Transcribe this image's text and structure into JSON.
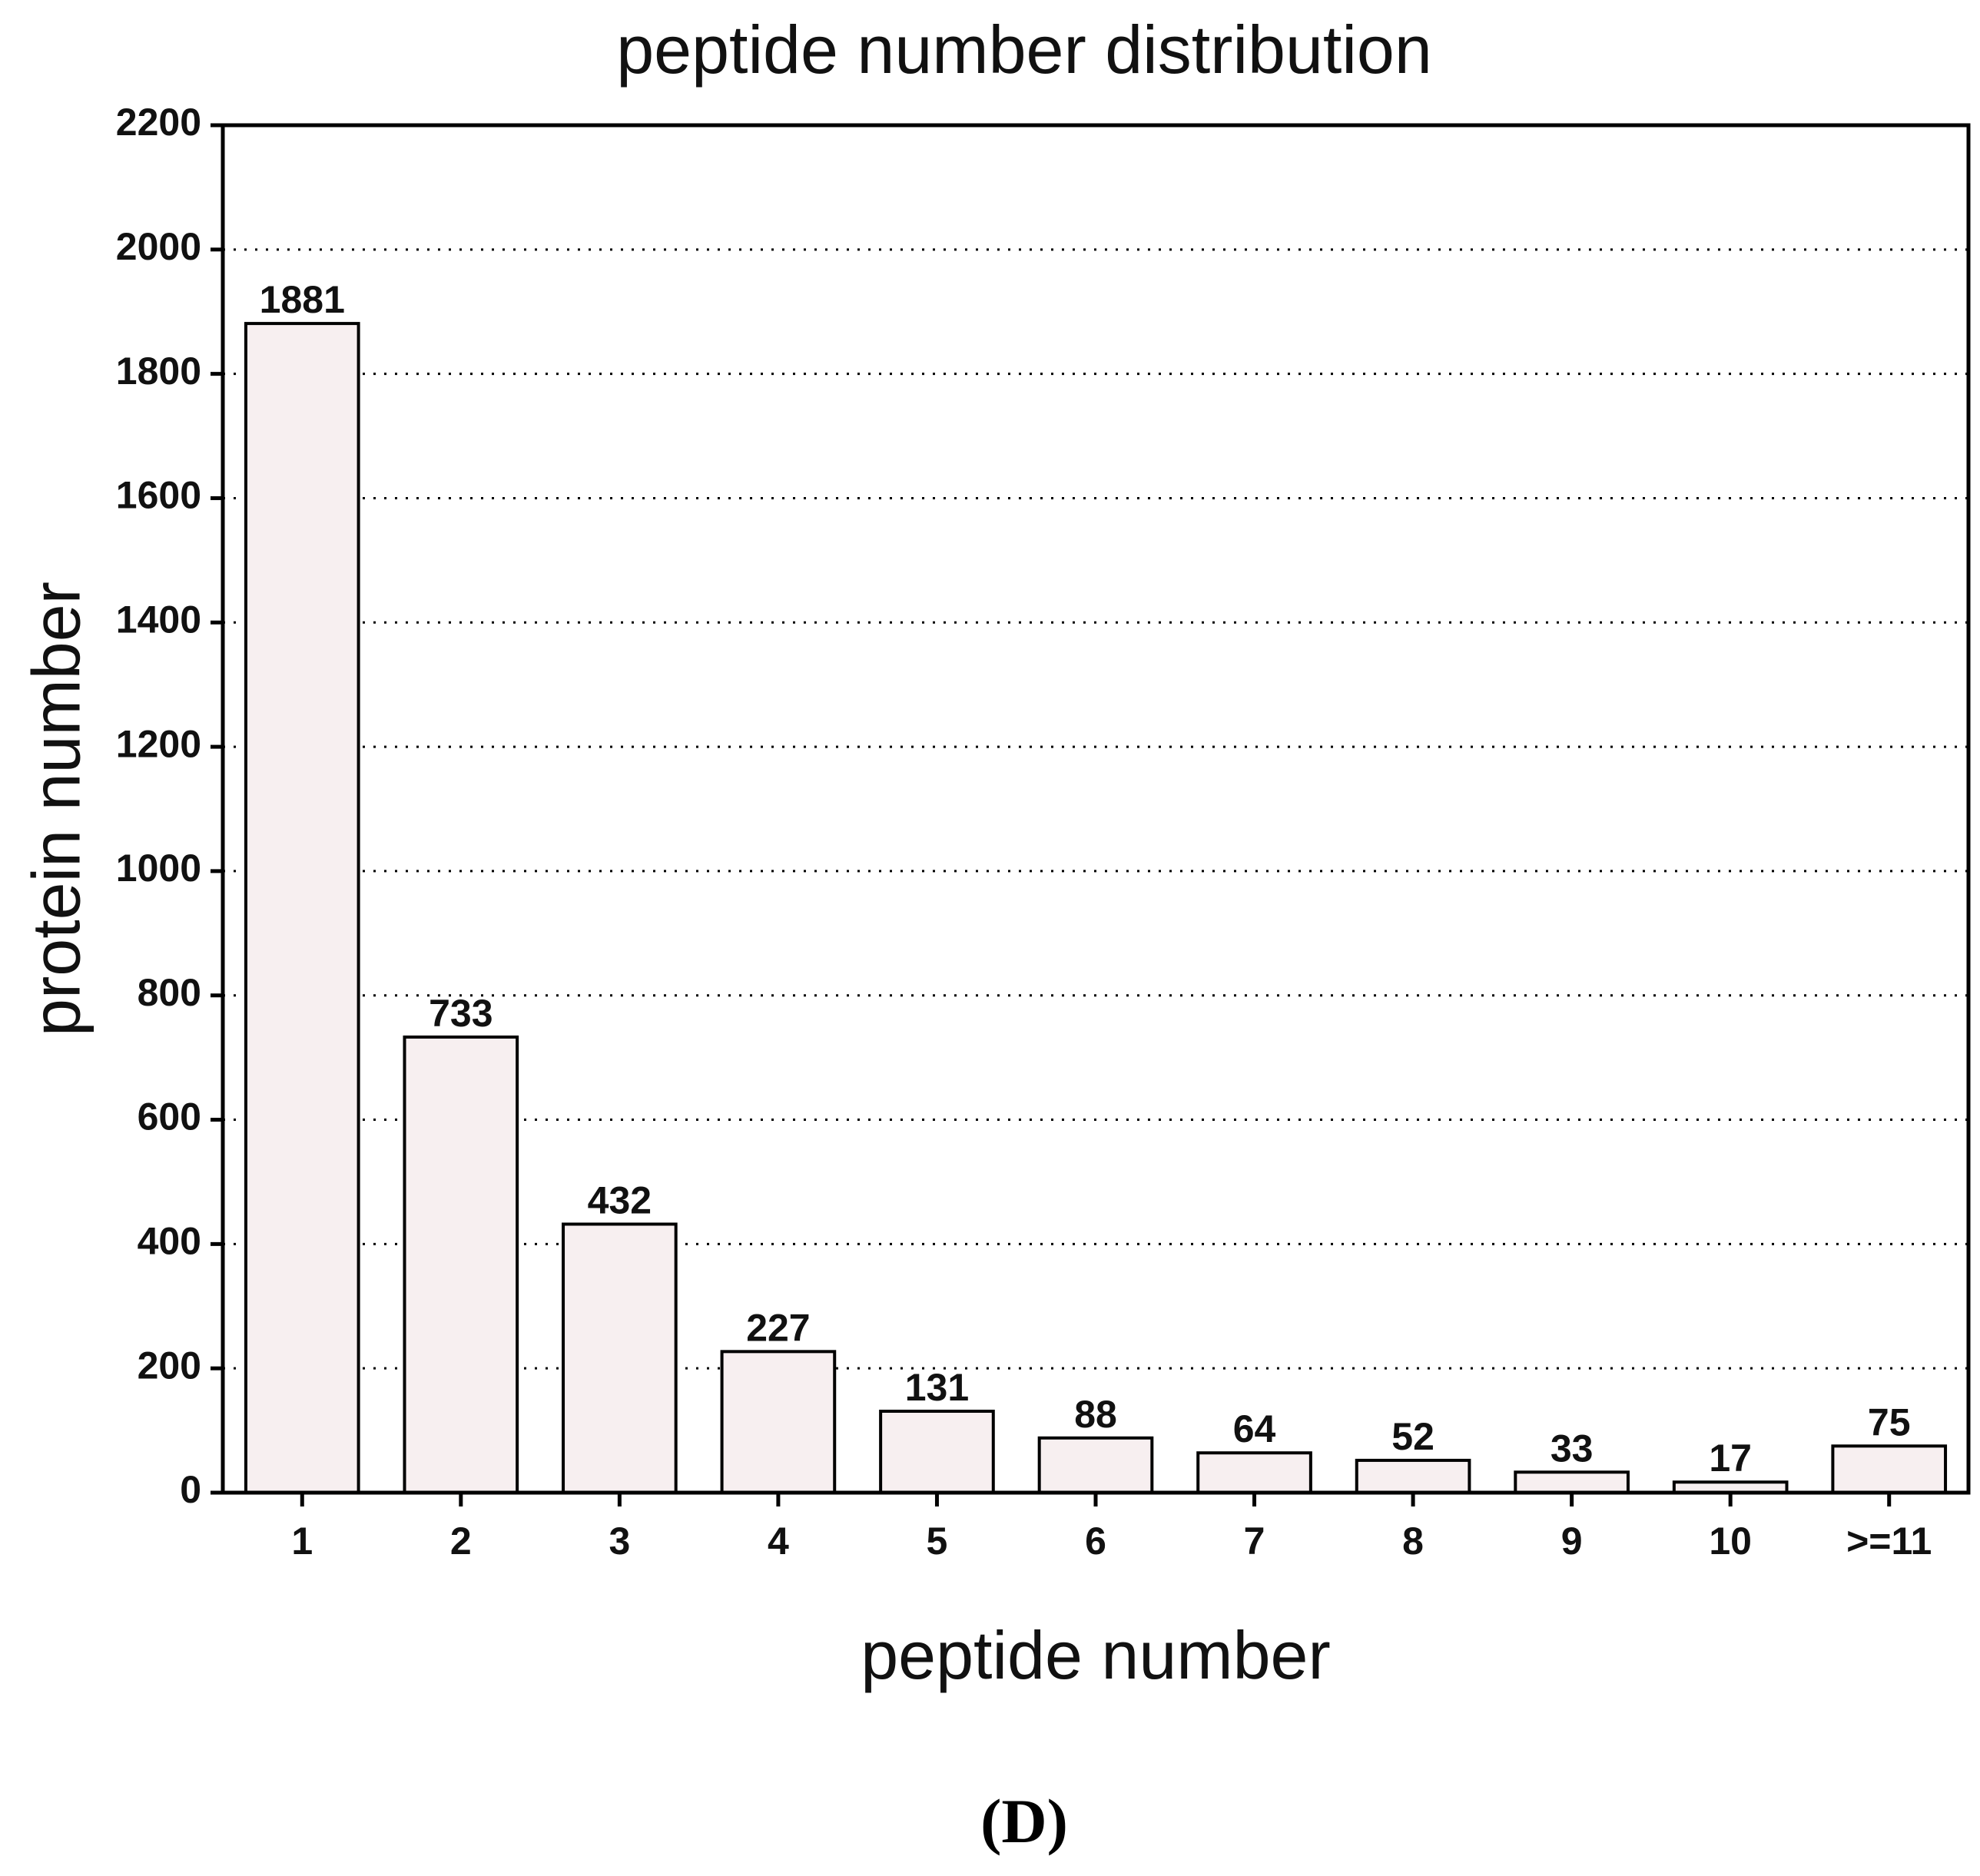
{
  "chart_data": {
    "type": "bar",
    "title": "peptide number distribution",
    "xlabel": "peptide number",
    "ylabel": "protein number",
    "categories": [
      "1",
      "2",
      "3",
      "4",
      "5",
      "6",
      "7",
      "8",
      "9",
      "10",
      ">=11"
    ],
    "values": [
      1881,
      733,
      432,
      227,
      131,
      88,
      64,
      52,
      33,
      17,
      75
    ],
    "data_labels": [
      "1881",
      "733",
      "432",
      "227",
      "131",
      "88",
      "64",
      "52",
      "33",
      "17",
      "75"
    ],
    "ylim": [
      0,
      2200
    ],
    "yticks": [
      0,
      200,
      400,
      600,
      800,
      1000,
      1200,
      1400,
      1600,
      1800,
      2000,
      2200
    ],
    "grid": "horizontal dotted",
    "legend": "none",
    "colors": {
      "bar_fill": "#f7eff0",
      "bar_edge": "#000000",
      "text": "#111111"
    }
  },
  "panel_label": "(D)"
}
